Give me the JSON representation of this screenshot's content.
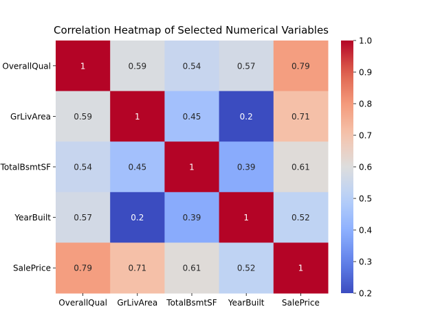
{
  "chart_data": {
    "type": "heatmap",
    "title": "Correlation Heatmap of Selected Numerical Variables",
    "xlabel": "",
    "ylabel": "",
    "x_categories": [
      "OverallQual",
      "GrLivArea",
      "TotalBsmtSF",
      "YearBuilt",
      "SalePrice"
    ],
    "y_categories": [
      "OverallQual",
      "GrLivArea",
      "TotalBsmtSF",
      "YearBuilt",
      "SalePrice"
    ],
    "values": [
      [
        1,
        0.59,
        0.54,
        0.57,
        0.79
      ],
      [
        0.59,
        1,
        0.45,
        0.2,
        0.71
      ],
      [
        0.54,
        0.45,
        1,
        0.39,
        0.61
      ],
      [
        0.57,
        0.2,
        0.39,
        1,
        0.52
      ],
      [
        0.79,
        0.71,
        0.61,
        0.52,
        1
      ]
    ],
    "cell_labels": [
      [
        "1",
        "0.59",
        "0.54",
        "0.57",
        "0.79"
      ],
      [
        "0.59",
        "1",
        "0.45",
        "0.2",
        "0.71"
      ],
      [
        "0.54",
        "0.45",
        "1",
        "0.39",
        "0.61"
      ],
      [
        "0.57",
        "0.2",
        "0.39",
        "1",
        "0.52"
      ],
      [
        "0.79",
        "0.71",
        "0.61",
        "0.52",
        "1"
      ]
    ],
    "colormap": "coolwarm",
    "colorbar": {
      "range": [
        0.2,
        1.0
      ],
      "ticks": [
        0.2,
        0.3,
        0.4,
        0.5,
        0.6,
        0.7,
        0.8,
        0.9,
        1.0
      ],
      "tick_labels": [
        "0.2",
        "0.3",
        "0.4",
        "0.5",
        "0.6",
        "0.7",
        "0.8",
        "0.9",
        "1.0"
      ],
      "placement": "right"
    },
    "annotations": true,
    "grid": false
  }
}
